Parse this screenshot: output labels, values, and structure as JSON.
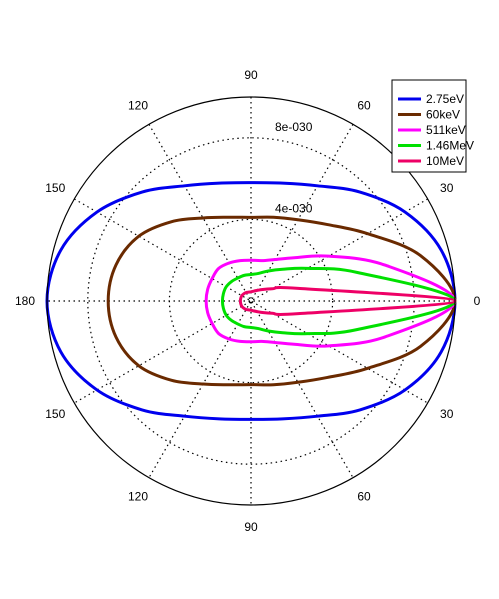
{
  "chart_data": {
    "type": "polar_line",
    "title": "",
    "angular_tick_labels": [
      "0",
      "30",
      "60",
      "90",
      "120",
      "150",
      "180",
      "150",
      "120",
      "90",
      "60",
      "30"
    ],
    "angular_tick_degrees": [
      0,
      30,
      60,
      90,
      120,
      150,
      180,
      210,
      240,
      270,
      300,
      330
    ],
    "radial_max": 1e-29,
    "radial_ticks": [
      4e-30,
      8e-30
    ],
    "radial_tick_labels": [
      "4e-030",
      "8e-030"
    ],
    "grid": true,
    "legend": {
      "position": "top-right",
      "entries": [
        {
          "label": "2.75eV",
          "color": "#0000ee"
        },
        {
          "label": "60keV",
          "color": "#6a2a00"
        },
        {
          "label": "511keV",
          "color": "#ff00ff"
        },
        {
          "label": "1.46MeV",
          "color": "#00e000"
        },
        {
          "label": "10MeV",
          "color": "#ee0066"
        }
      ]
    },
    "theta_deg": [
      0,
      15,
      30,
      45,
      60,
      75,
      90,
      105,
      120,
      135,
      150,
      165,
      180
    ],
    "series": [
      {
        "name": "2.75eV",
        "color": "#0000ee",
        "r": [
          1e-29,
          9.65e-30,
          8.72e-30,
          7.55e-30,
          6.52e-30,
          5.98e-30,
          5.8e-30,
          5.98e-30,
          6.52e-30,
          7.55e-30,
          8.72e-30,
          9.65e-30,
          1e-29
        ]
      },
      {
        "name": "60keV",
        "color": "#6a2a00",
        "r": [
          1e-29,
          8.6e-30,
          6.6e-30,
          5.3e-30,
          4.6e-30,
          4.25e-30,
          4.1e-30,
          4.25e-30,
          4.7e-30,
          5.5e-30,
          6.35e-30,
          6.85e-30,
          7e-30
        ]
      },
      {
        "name": "511keV",
        "color": "#ff00ff",
        "r": [
          1e-29,
          6.8e-30,
          4.4e-30,
          3e-30,
          2.35e-30,
          2.05e-30,
          2e-30,
          2.05e-30,
          2.15e-30,
          2.25e-30,
          2.2e-30,
          2.2e-30,
          2.2e-30
        ]
      },
      {
        "name": "1.46MeV",
        "color": "#00e000",
        "r": [
          1e-29,
          5.4e-30,
          3.2e-30,
          2.2e-30,
          1.7e-30,
          1.4e-30,
          1.3e-30,
          1.3e-30,
          1.3e-30,
          1.35e-30,
          1.4e-30,
          1.4e-30,
          1.4e-30
        ]
      },
      {
        "name": "10MeV",
        "color": "#ee0066",
        "r": [
          1e-29,
          2.4e-30,
          1.2e-30,
          8e-31,
          6e-31,
          5e-31,
          4.5e-31,
          4.5e-31,
          4.8e-31,
          5e-31,
          5.2e-31,
          5.2e-31,
          5.2e-31
        ]
      }
    ]
  }
}
